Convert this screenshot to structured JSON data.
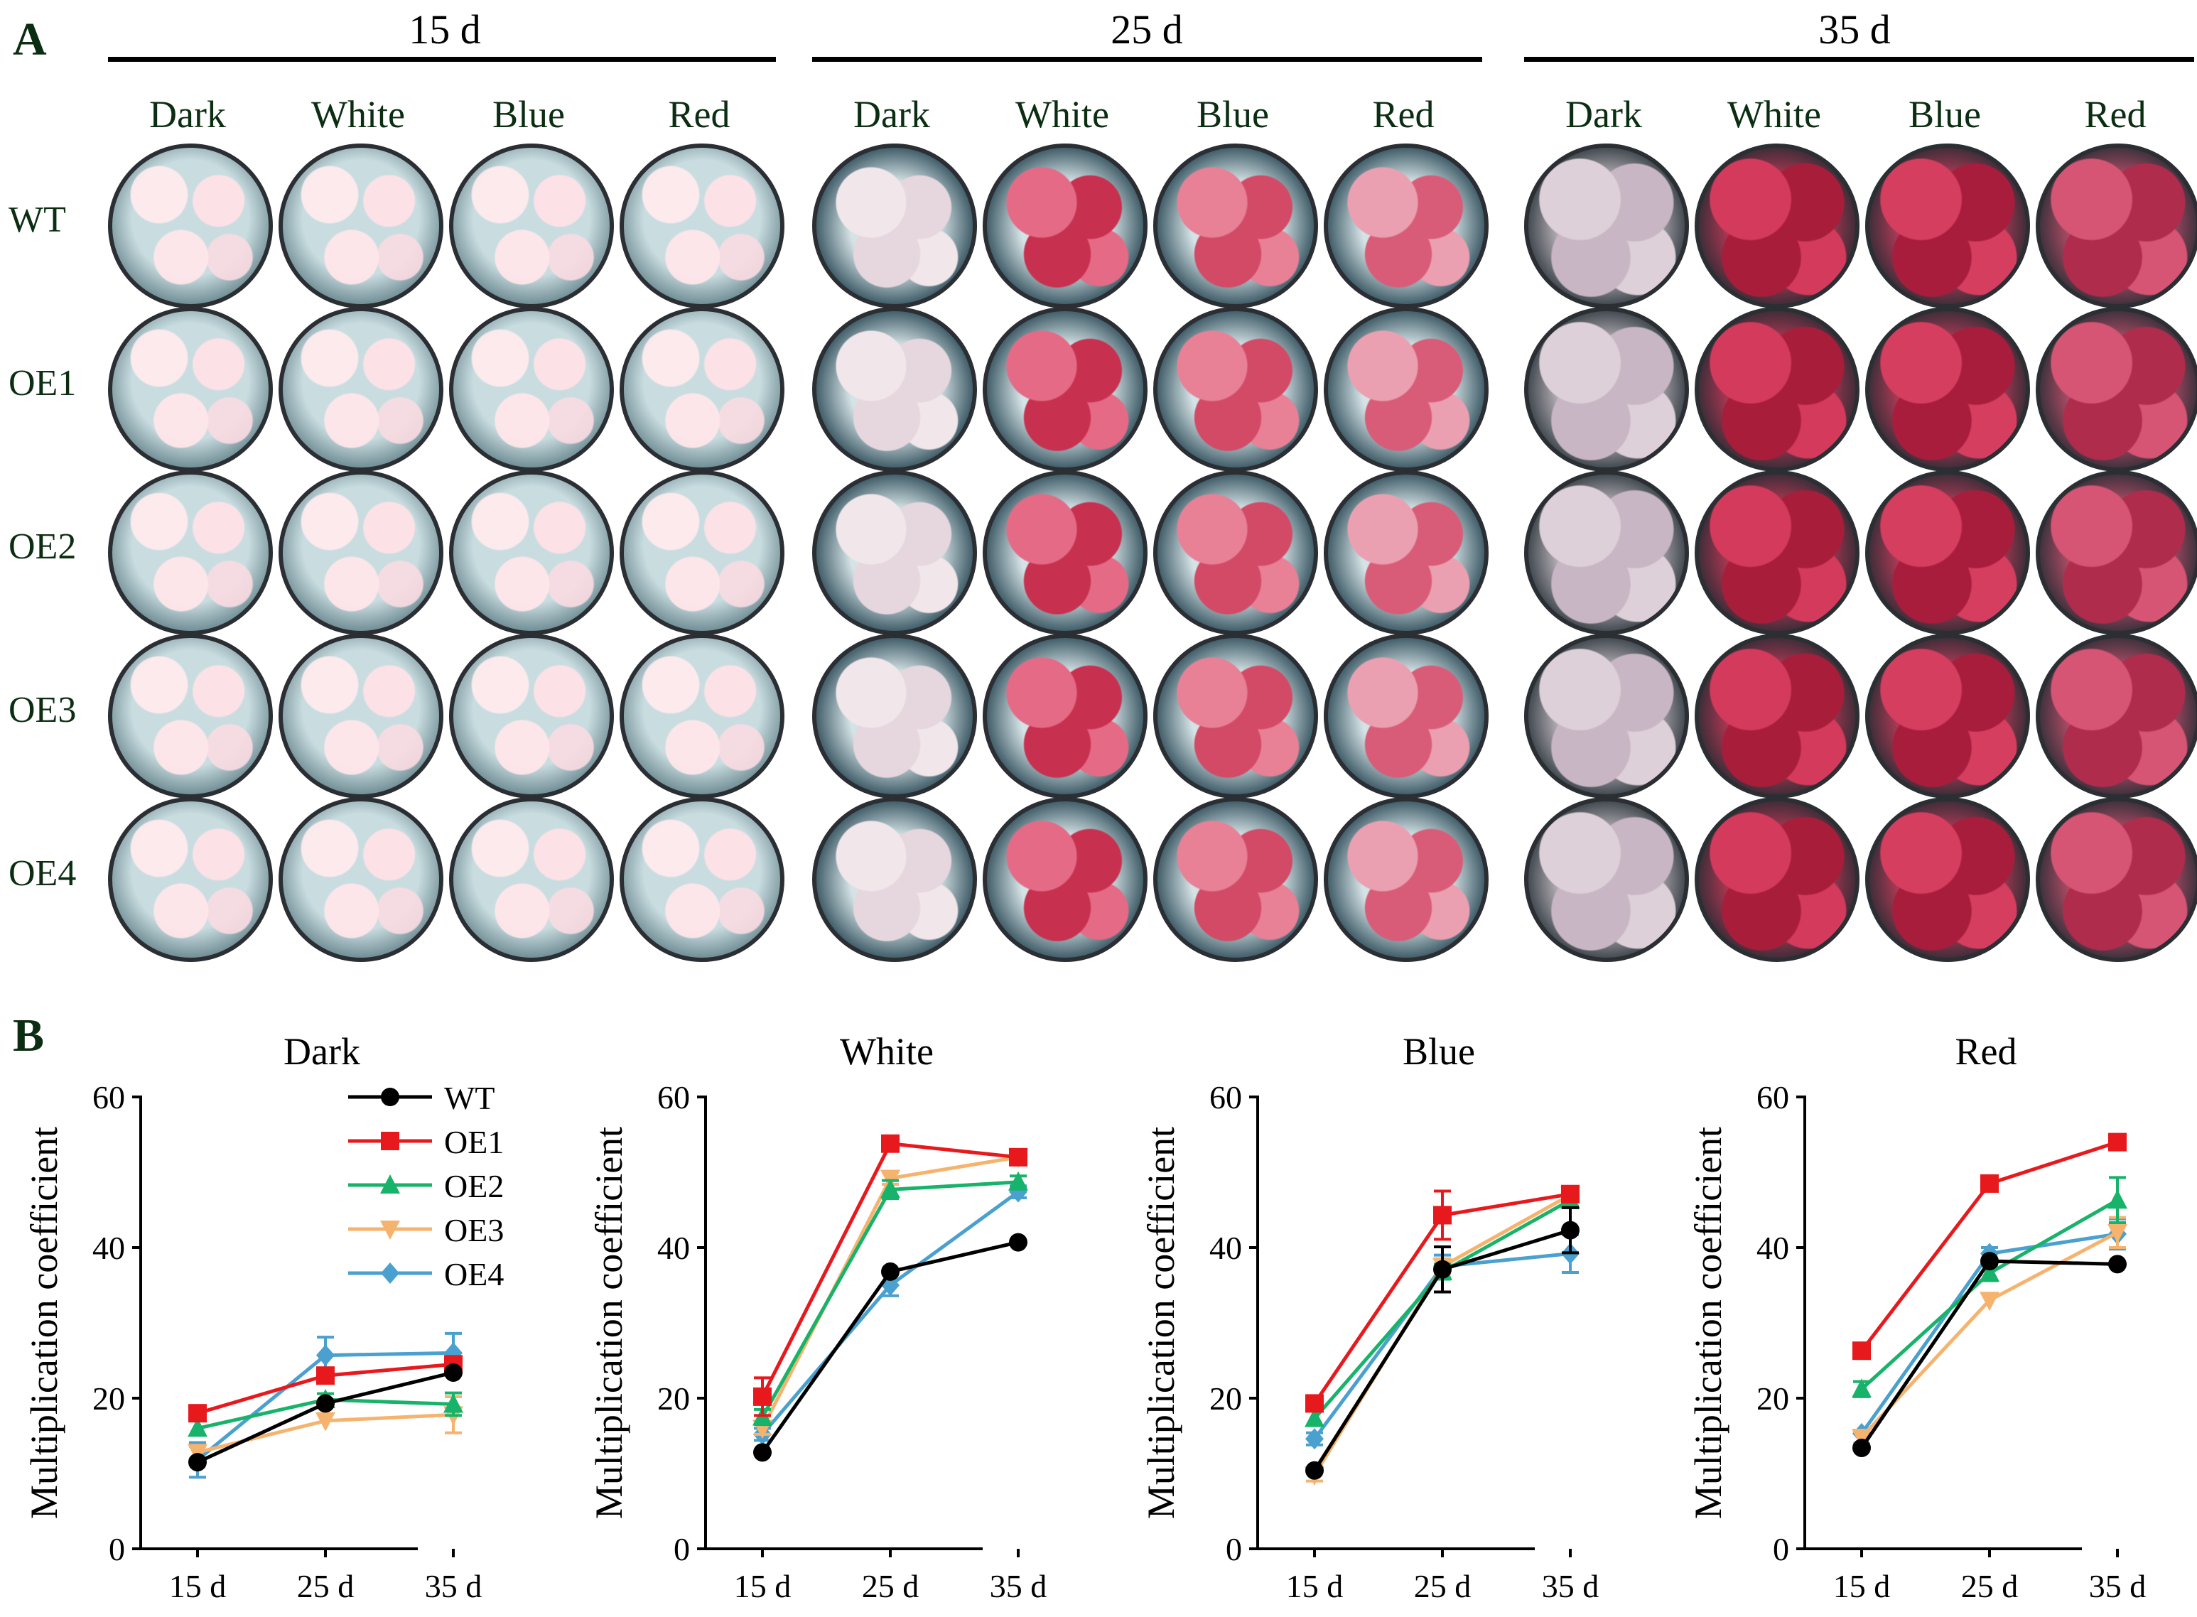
{
  "panel_a": {
    "letter": "A",
    "time_points": [
      "15 d",
      "25 d",
      "35 d"
    ],
    "light_conditions": [
      "Dark",
      "White",
      "Blue",
      "Red"
    ],
    "genotypes": [
      "WT",
      "OE1",
      "OE2",
      "OE3",
      "OE4"
    ]
  },
  "panel_b": {
    "letter": "B",
    "legend": [
      "WT",
      "OE1",
      "OE2",
      "OE3",
      "OE4"
    ]
  },
  "series_colors": {
    "WT": "#000000",
    "OE1": "#e8191c",
    "OE2": "#18b36a",
    "OE3": "#f6b36e",
    "OE4": "#4aa0cf"
  },
  "chart_data": [
    {
      "type": "line",
      "title": "Dark",
      "xlabel": "",
      "ylabel": "Multiplication coefficient",
      "categories": [
        "15 d",
        "25 d",
        "35 d"
      ],
      "ylim": [
        0,
        60
      ],
      "yticks": [
        "0",
        "20",
        "40",
        "60"
      ],
      "series": [
        {
          "name": "WT",
          "values": [
            11.5,
            19.3,
            23.4
          ],
          "errors": [
            0.5,
            0.5,
            0.6
          ]
        },
        {
          "name": "OE1",
          "values": [
            18.0,
            23.0,
            24.5
          ],
          "errors": [
            0.6,
            1.0,
            0.8
          ]
        },
        {
          "name": "OE2",
          "values": [
            16.0,
            19.8,
            19.2
          ],
          "errors": [
            0.5,
            0.8,
            1.5
          ]
        },
        {
          "name": "OE3",
          "values": [
            12.8,
            17.0,
            17.8
          ],
          "errors": [
            0.8,
            0.6,
            2.4
          ]
        },
        {
          "name": "OE4",
          "values": [
            11.8,
            25.7,
            26.0
          ],
          "errors": [
            2.3,
            2.4,
            2.6
          ]
        }
      ]
    },
    {
      "type": "line",
      "title": "White",
      "xlabel": "",
      "ylabel": "Multiplication coefficient",
      "categories": [
        "15 d",
        "25 d",
        "35 d"
      ],
      "ylim": [
        0,
        60
      ],
      "yticks": [
        "0",
        "20",
        "40",
        "60"
      ],
      "series": [
        {
          "name": "WT",
          "values": [
            12.8,
            36.8,
            40.7
          ],
          "errors": [
            0.4,
            0.6,
            0.5
          ]
        },
        {
          "name": "OE1",
          "values": [
            20.2,
            53.8,
            52.0
          ],
          "errors": [
            2.5,
            0.6,
            0.5
          ]
        },
        {
          "name": "OE2",
          "values": [
            17.5,
            47.7,
            48.7
          ],
          "errors": [
            1.0,
            1.2,
            0.8
          ]
        },
        {
          "name": "OE3",
          "values": [
            16.0,
            49.2,
            52.0
          ],
          "errors": [
            0.8,
            0.8,
            0.6
          ]
        },
        {
          "name": "OE4",
          "values": [
            15.2,
            35.0,
            47.4
          ],
          "errors": [
            0.8,
            1.4,
            0.8
          ]
        }
      ]
    },
    {
      "type": "line",
      "title": "Blue",
      "xlabel": "",
      "ylabel": "Multiplication coefficient",
      "categories": [
        "15 d",
        "25 d",
        "35 d"
      ],
      "ylim": [
        0,
        60
      ],
      "yticks": [
        "0",
        "20",
        "40",
        "60"
      ],
      "series": [
        {
          "name": "WT",
          "values": [
            10.4,
            37.1,
            42.3
          ],
          "errors": [
            0.5,
            3.0,
            3.0
          ]
        },
        {
          "name": "OE1",
          "values": [
            19.3,
            44.3,
            47.1
          ],
          "errors": [
            0.5,
            3.2,
            0.6
          ]
        },
        {
          "name": "OE2",
          "values": [
            17.3,
            36.8,
            46.3
          ],
          "errors": [
            0.6,
            1.0,
            0.8
          ]
        },
        {
          "name": "OE3",
          "values": [
            9.8,
            37.5,
            47.0
          ],
          "errors": [
            0.8,
            1.0,
            0.6
          ]
        },
        {
          "name": "OE4",
          "values": [
            14.6,
            37.5,
            39.2
          ],
          "errors": [
            0.8,
            1.5,
            2.5
          ]
        }
      ]
    },
    {
      "type": "line",
      "title": "Red",
      "xlabel": "",
      "ylabel": "Multiplication coefficient",
      "categories": [
        "15 d",
        "25 d",
        "35 d"
      ],
      "ylim": [
        0,
        60
      ],
      "yticks": [
        "0",
        "20",
        "40",
        "60"
      ],
      "series": [
        {
          "name": "WT",
          "values": [
            13.4,
            38.2,
            37.8
          ],
          "errors": [
            0.5,
            0.5,
            0.6
          ]
        },
        {
          "name": "OE1",
          "values": [
            26.3,
            48.5,
            54.0
          ],
          "errors": [
            0.6,
            0.6,
            0.6
          ]
        },
        {
          "name": "OE2",
          "values": [
            21.2,
            36.6,
            46.3
          ],
          "errors": [
            1.0,
            1.0,
            3.0
          ]
        },
        {
          "name": "OE3",
          "values": [
            14.8,
            33.0,
            42.0
          ],
          "errors": [
            0.8,
            0.6,
            2.0
          ]
        },
        {
          "name": "OE4",
          "values": [
            15.3,
            39.2,
            41.8
          ],
          "errors": [
            0.6,
            0.8,
            2.0
          ]
        }
      ]
    }
  ]
}
